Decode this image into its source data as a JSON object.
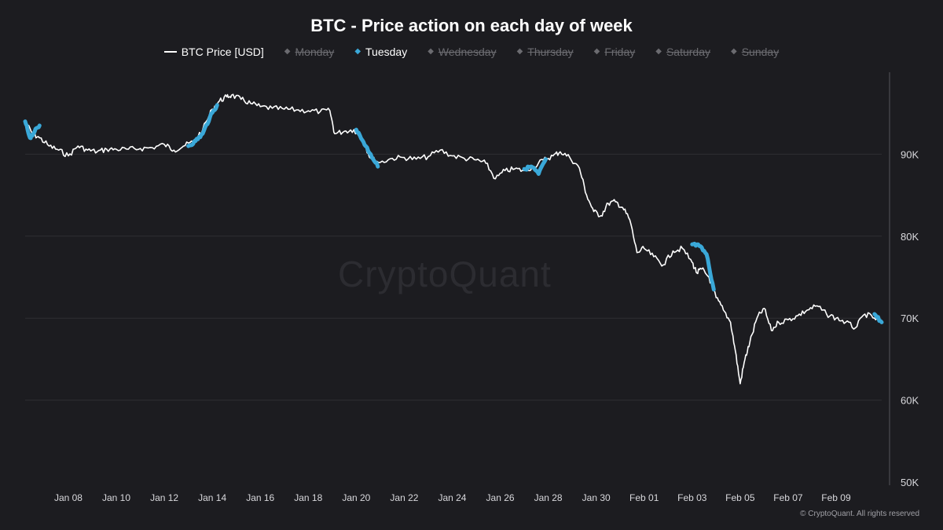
{
  "colors": {
    "background": "#1c1c20",
    "price_line": "#ffffff",
    "tuesday": "#3aa8d8",
    "grid": "#2e2e33",
    "muted": "#6b6b70"
  },
  "copyright": "© CryptoQuant. All rights reserved",
  "watermark": "CryptoQuant",
  "chart_data": {
    "type": "line",
    "title": "BTC - Price action on each day of week",
    "legend": [
      {
        "name": "BTC Price [USD]",
        "visible": true,
        "marker": "line"
      },
      {
        "name": "Monday",
        "visible": false,
        "marker": "dot"
      },
      {
        "name": "Tuesday",
        "visible": true,
        "marker": "dot"
      },
      {
        "name": "Wednesday",
        "visible": false,
        "marker": "dot"
      },
      {
        "name": "Thursday",
        "visible": false,
        "marker": "dot"
      },
      {
        "name": "Friday",
        "visible": false,
        "marker": "dot"
      },
      {
        "name": "Saturday",
        "visible": false,
        "marker": "dot"
      },
      {
        "name": "Sunday",
        "visible": false,
        "marker": "dot"
      }
    ],
    "y_axis": {
      "position": "right",
      "ylim": [
        50000,
        100000
      ],
      "ticks": [
        50000,
        60000,
        70000,
        80000,
        90000
      ],
      "tick_labels": [
        "50K",
        "60K",
        "70K",
        "80K",
        "90K"
      ]
    },
    "x_axis": {
      "xlim": [
        6.2,
        41.9
      ],
      "ticks": [
        8,
        10,
        12,
        14,
        16,
        18,
        20,
        22,
        24,
        26,
        28,
        30,
        32,
        34,
        36,
        38,
        40
      ],
      "tick_labels": [
        "Jan 08",
        "Jan 10",
        "Jan 12",
        "Jan 14",
        "Jan 16",
        "Jan 18",
        "Jan 20",
        "Jan 22",
        "Jan 24",
        "Jan 26",
        "Jan 28",
        "Jan 30",
        "Feb 01",
        "Feb 03",
        "Feb 05",
        "Feb 07",
        "Feb 09"
      ]
    },
    "series": [
      {
        "name": "BTC Price [USD]",
        "x": [
          6.2,
          6.5,
          6.8,
          7.2,
          7.6,
          8.0,
          8.4,
          8.8,
          9.2,
          9.6,
          10.0,
          10.5,
          11.0,
          11.5,
          12.0,
          12.4,
          12.8,
          13.2,
          13.6,
          14.0,
          14.3,
          14.6,
          14.8,
          15.2,
          15.6,
          16.0,
          16.5,
          17.0,
          17.5,
          18.0,
          18.5,
          18.9,
          19.1,
          19.5,
          19.9,
          20.3,
          20.6,
          21.0,
          21.5,
          22.0,
          22.5,
          23.0,
          23.5,
          24.0,
          24.5,
          25.0,
          25.4,
          25.8,
          26.2,
          26.6,
          27.0,
          27.4,
          27.8,
          28.2,
          28.5,
          28.9,
          29.3,
          29.6,
          29.9,
          30.2,
          30.5,
          30.8,
          31.1,
          31.4,
          31.7,
          32.0,
          32.4,
          32.8,
          33.2,
          33.6,
          34.0,
          34.2,
          34.4,
          34.7,
          35.0,
          35.3,
          35.6,
          35.8,
          36.0,
          36.2,
          36.4,
          36.7,
          37.0,
          37.3,
          37.6,
          38.0,
          38.4,
          38.8,
          39.2,
          39.6,
          40.0,
          40.4,
          40.8,
          41.2,
          41.6,
          41.9
        ],
        "values": [
          94000,
          92500,
          92000,
          91000,
          90500,
          89800,
          91000,
          90500,
          90300,
          90600,
          90600,
          90600,
          90700,
          90800,
          91200,
          90500,
          91000,
          91500,
          93000,
          95500,
          96500,
          97000,
          97200,
          96700,
          96200,
          95800,
          95600,
          95500,
          95400,
          95300,
          95200,
          95300,
          92500,
          92800,
          93000,
          91500,
          89500,
          89000,
          89500,
          89600,
          89400,
          89700,
          90500,
          89800,
          89500,
          89300,
          88900,
          87000,
          88000,
          88200,
          88000,
          88500,
          89300,
          89800,
          90300,
          89600,
          88300,
          85000,
          83000,
          82500,
          84000,
          84200,
          83500,
          82000,
          78000,
          78500,
          77500,
          76500,
          78200,
          78500,
          76800,
          75500,
          76000,
          75000,
          72500,
          71000,
          69500,
          66000,
          62000,
          65000,
          67000,
          70000,
          71200,
          68500,
          69500,
          69800,
          70300,
          71000,
          71500,
          70500,
          70000,
          69500,
          68800,
          70500,
          70000,
          69300
        ]
      },
      {
        "name": "Tuesday",
        "segments": [
          {
            "x": [
              6.2,
              6.4,
              6.6,
              6.8
            ],
            "values": [
              94000,
              92000,
              92800,
              93500
            ]
          },
          {
            "x": [
              13.0,
              13.3,
              13.6,
              13.9,
              14.2
            ],
            "values": [
              91000,
              91600,
              92500,
              94500,
              96000
            ]
          },
          {
            "x": [
              20.0,
              20.3,
              20.6,
              20.9
            ],
            "values": [
              93000,
              91500,
              90000,
              88500
            ]
          },
          {
            "x": [
              27.0,
              27.3,
              27.6,
              27.9
            ],
            "values": [
              88200,
              88500,
              87600,
              89400
            ]
          },
          {
            "x": [
              34.0,
              34.3,
              34.6,
              34.9
            ],
            "values": [
              79000,
              78800,
              77800,
              73500
            ]
          },
          {
            "x": [
              41.6,
              41.9
            ],
            "values": [
              70500,
              69500
            ]
          }
        ]
      }
    ]
  }
}
